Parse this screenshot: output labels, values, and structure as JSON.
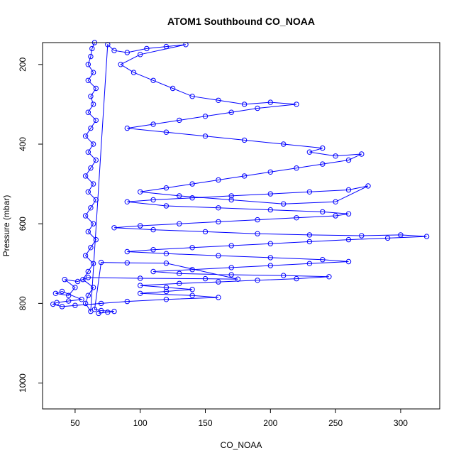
{
  "chart_data": {
    "type": "scatter",
    "title": "ATOM1 Southbound CO_NOAA",
    "xlabel": "CO_NOAA",
    "ylabel": "Pressure (mbar)",
    "xlim": [
      25,
      330
    ],
    "ylim": [
      1065,
      145
    ],
    "y_reversed": true,
    "grid": false,
    "legend": "none",
    "x_ticks": [
      "50",
      "100",
      "150",
      "200",
      "250",
      "300"
    ],
    "y_ticks": [
      "200",
      "400",
      "600",
      "800",
      "1000"
    ],
    "marker": "open-circle",
    "series": [
      {
        "color": "#0000ff",
        "line": true,
        "points": [
          [
            65,
            145
          ],
          [
            63,
            160
          ],
          [
            62,
            180
          ],
          [
            60,
            200
          ],
          [
            64,
            220
          ],
          [
            60,
            240
          ],
          [
            66,
            260
          ],
          [
            62,
            280
          ],
          [
            64,
            300
          ],
          [
            60,
            320
          ],
          [
            66,
            340
          ],
          [
            62,
            360
          ],
          [
            58,
            380
          ],
          [
            64,
            400
          ],
          [
            60,
            420
          ],
          [
            66,
            440
          ],
          [
            62,
            460
          ],
          [
            58,
            480
          ],
          [
            64,
            500
          ],
          [
            60,
            520
          ],
          [
            66,
            540
          ],
          [
            62,
            560
          ],
          [
            58,
            580
          ],
          [
            64,
            600
          ],
          [
            60,
            620
          ],
          [
            66,
            640
          ],
          [
            62,
            660
          ],
          [
            58,
            680
          ],
          [
            64,
            700
          ],
          [
            60,
            720
          ],
          [
            56,
            740
          ],
          [
            64,
            760
          ],
          [
            60,
            780
          ],
          [
            58,
            800
          ],
          [
            62,
            820
          ],
          [
            75,
            150
          ],
          [
            80,
            165
          ],
          [
            90,
            170
          ],
          [
            105,
            160
          ],
          [
            120,
            155
          ],
          [
            135,
            150
          ],
          [
            100,
            175
          ],
          [
            85,
            200
          ],
          [
            95,
            220
          ],
          [
            110,
            240
          ],
          [
            125,
            260
          ],
          [
            140,
            280
          ],
          [
            160,
            290
          ],
          [
            180,
            300
          ],
          [
            200,
            295
          ],
          [
            220,
            300
          ],
          [
            190,
            310
          ],
          [
            170,
            320
          ],
          [
            150,
            330
          ],
          [
            130,
            340
          ],
          [
            110,
            350
          ],
          [
            90,
            360
          ],
          [
            120,
            370
          ],
          [
            150,
            380
          ],
          [
            180,
            390
          ],
          [
            210,
            400
          ],
          [
            240,
            410
          ],
          [
            230,
            420
          ],
          [
            250,
            430
          ],
          [
            270,
            425
          ],
          [
            260,
            440
          ],
          [
            240,
            450
          ],
          [
            220,
            460
          ],
          [
            200,
            470
          ],
          [
            180,
            480
          ],
          [
            160,
            490
          ],
          [
            140,
            500
          ],
          [
            120,
            510
          ],
          [
            100,
            520
          ],
          [
            130,
            530
          ],
          [
            170,
            540
          ],
          [
            210,
            550
          ],
          [
            250,
            545
          ],
          [
            275,
            505
          ],
          [
            260,
            515
          ],
          [
            230,
            520
          ],
          [
            200,
            525
          ],
          [
            170,
            530
          ],
          [
            140,
            535
          ],
          [
            110,
            540
          ],
          [
            90,
            545
          ],
          [
            120,
            555
          ],
          [
            160,
            560
          ],
          [
            200,
            565
          ],
          [
            240,
            570
          ],
          [
            260,
            575
          ],
          [
            250,
            580
          ],
          [
            220,
            585
          ],
          [
            190,
            590
          ],
          [
            160,
            595
          ],
          [
            130,
            600
          ],
          [
            100,
            605
          ],
          [
            80,
            610
          ],
          [
            110,
            615
          ],
          [
            150,
            620
          ],
          [
            190,
            625
          ],
          [
            230,
            628
          ],
          [
            270,
            630
          ],
          [
            300,
            628
          ],
          [
            320,
            632
          ],
          [
            290,
            636
          ],
          [
            260,
            640
          ],
          [
            230,
            645
          ],
          [
            200,
            650
          ],
          [
            170,
            655
          ],
          [
            140,
            660
          ],
          [
            110,
            665
          ],
          [
            90,
            670
          ],
          [
            120,
            675
          ],
          [
            160,
            680
          ],
          [
            200,
            685
          ],
          [
            240,
            690
          ],
          [
            260,
            695
          ],
          [
            230,
            700
          ],
          [
            200,
            705
          ],
          [
            170,
            710
          ],
          [
            140,
            715
          ],
          [
            110,
            720
          ],
          [
            130,
            725
          ],
          [
            170,
            728
          ],
          [
            210,
            730
          ],
          [
            245,
            733
          ],
          [
            220,
            738
          ],
          [
            190,
            742
          ],
          [
            160,
            746
          ],
          [
            130,
            750
          ],
          [
            100,
            755
          ],
          [
            120,
            760
          ],
          [
            140,
            765
          ],
          [
            120,
            770
          ],
          [
            100,
            775
          ],
          [
            140,
            780
          ],
          [
            160,
            785
          ],
          [
            120,
            790
          ],
          [
            90,
            795
          ],
          [
            70,
            800
          ],
          [
            50,
            805
          ],
          [
            40,
            808
          ],
          [
            33,
            802
          ],
          [
            36,
            798
          ],
          [
            45,
            794
          ],
          [
            55,
            790
          ],
          [
            40,
            770
          ],
          [
            35,
            775
          ],
          [
            45,
            780
          ],
          [
            50,
            760
          ],
          [
            42,
            740
          ],
          [
            52,
            745
          ],
          [
            60,
            735
          ],
          [
            100,
            737
          ],
          [
            150,
            738
          ],
          [
            175,
            739
          ],
          [
            120,
            699
          ],
          [
            90,
            698
          ],
          [
            70,
            697
          ],
          [
            65,
            815
          ],
          [
            70,
            818
          ],
          [
            80,
            820
          ],
          [
            75,
            822
          ],
          [
            68,
            825
          ]
        ]
      }
    ]
  }
}
